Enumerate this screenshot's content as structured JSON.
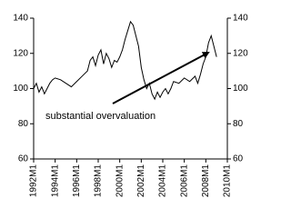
{
  "chart_data": {
    "type": "line",
    "annotation": "substantial overvaluation",
    "x": [
      1992,
      1992.25,
      1992.5,
      1992.75,
      1993,
      1993.25,
      1993.5,
      1993.75,
      1994,
      1994.5,
      1995,
      1995.5,
      1996,
      1996.5,
      1997,
      1997.25,
      1997.5,
      1997.75,
      1998,
      1998.25,
      1998.5,
      1998.75,
      1999,
      1999.25,
      1999.5,
      1999.75,
      2000,
      2000.25,
      2000.5,
      2000.75,
      2001,
      2001.25,
      2001.5,
      2001.75,
      2002,
      2002.25,
      2002.5,
      2002.75,
      2003,
      2003.25,
      2003.5,
      2003.75,
      2004,
      2004.25,
      2004.5,
      2004.75,
      2005,
      2005.5,
      2006,
      2006.5,
      2007,
      2007.25,
      2007.5,
      2007.75,
      2008,
      2008.25,
      2008.5,
      2008.75,
      2009
    ],
    "series": [
      {
        "color": "#000000",
        "values": [
          100,
          103,
          98,
          101,
          97,
          100,
          103,
          105,
          106,
          105,
          103,
          101,
          104,
          107,
          110,
          116,
          118,
          113,
          119,
          122,
          114,
          120,
          117,
          112,
          116,
          115,
          118,
          122,
          128,
          133,
          138,
          136,
          130,
          124,
          112,
          105,
          100,
          103,
          97,
          94,
          98,
          95,
          98,
          100,
          97,
          100,
          104,
          103,
          106,
          104,
          107,
          103,
          108,
          114,
          118,
          126,
          130,
          124,
          118
        ]
      }
    ],
    "xlim": [
      1992,
      2010
    ],
    "xticks": [
      {
        "value": 1992,
        "label": "1992M1"
      },
      {
        "value": 1994,
        "label": "1994M1"
      },
      {
        "value": 1996,
        "label": "1996M1"
      },
      {
        "value": 1998,
        "label": "1998M1"
      },
      {
        "value": 2000,
        "label": "2000M1"
      },
      {
        "value": 2002,
        "label": "2002M1"
      },
      {
        "value": 2004,
        "label": "2004M1"
      },
      {
        "value": 2006,
        "label": "2006M1"
      },
      {
        "value": 2008,
        "label": "2008M1"
      },
      {
        "value": 2010,
        "label": "2010M1"
      }
    ],
    "ylim": [
      60,
      140
    ],
    "yticks": [
      60,
      80,
      100,
      120,
      140
    ],
    "y2lim": [
      60,
      140
    ],
    "y2ticks": [
      60,
      80,
      100,
      120,
      140
    ]
  }
}
